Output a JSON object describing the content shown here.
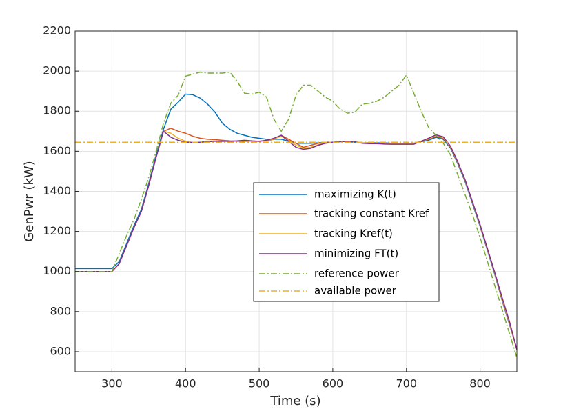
{
  "chart_data": {
    "type": "line",
    "xlabel": "Time (s)",
    "ylabel": "GenPwr (kW)",
    "xlim": [
      250,
      850
    ],
    "ylim": [
      500,
      2200
    ],
    "xticks": [
      300,
      400,
      500,
      600,
      700,
      800
    ],
    "yticks": [
      600,
      800,
      1000,
      1200,
      1400,
      1600,
      1800,
      2000,
      2200
    ],
    "grid": true,
    "legend": "center-right",
    "x": [
      250,
      260,
      270,
      280,
      290,
      300,
      310,
      320,
      330,
      340,
      350,
      360,
      370,
      380,
      390,
      400,
      410,
      420,
      430,
      440,
      450,
      460,
      470,
      480,
      490,
      500,
      510,
      520,
      530,
      540,
      550,
      560,
      570,
      580,
      590,
      600,
      610,
      620,
      630,
      640,
      650,
      660,
      670,
      680,
      690,
      700,
      710,
      720,
      730,
      740,
      750,
      760,
      770,
      780,
      790,
      800,
      810,
      820,
      830,
      840,
      850
    ],
    "series": [
      {
        "name": "maximizing K(t)",
        "color": "#0072bd",
        "linestyle": "solid",
        "values": [
          1015,
          1015,
          1015,
          1015,
          1015,
          1015,
          1050,
          1140,
          1230,
          1310,
          1440,
          1580,
          1710,
          1810,
          1845,
          1885,
          1882,
          1865,
          1835,
          1795,
          1740,
          1710,
          1690,
          1680,
          1670,
          1665,
          1660,
          1660,
          1660,
          1650,
          1640,
          1640,
          1640,
          1642,
          1645,
          1645,
          1648,
          1648,
          1645,
          1642,
          1642,
          1642,
          1642,
          1640,
          1640,
          1640,
          1640,
          1648,
          1655,
          1670,
          1660,
          1615,
          1535,
          1445,
          1335,
          1225,
          1105,
          985,
          855,
          735,
          615
        ]
      },
      {
        "name": "tracking constant Kref",
        "color": "#d95319",
        "linestyle": "solid",
        "values": [
          1000,
          1000,
          1000,
          1000,
          1000,
          1000,
          1040,
          1130,
          1220,
          1300,
          1430,
          1570,
          1700,
          1715,
          1700,
          1690,
          1675,
          1665,
          1660,
          1658,
          1655,
          1652,
          1650,
          1650,
          1650,
          1650,
          1652,
          1660,
          1680,
          1660,
          1640,
          1620,
          1630,
          1640,
          1642,
          1645,
          1648,
          1650,
          1648,
          1642,
          1640,
          1640,
          1640,
          1640,
          1640,
          1640,
          1640,
          1650,
          1660,
          1675,
          1665,
          1620,
          1540,
          1450,
          1340,
          1230,
          1110,
          990,
          860,
          740,
          610
        ]
      },
      {
        "name": "tracking Kref(t)",
        "color": "#edb120",
        "linestyle": "solid",
        "values": [
          1000,
          1000,
          1000,
          1000,
          1000,
          1000,
          1040,
          1130,
          1220,
          1300,
          1430,
          1570,
          1700,
          1690,
          1665,
          1650,
          1645,
          1645,
          1648,
          1650,
          1650,
          1650,
          1652,
          1652,
          1650,
          1650,
          1655,
          1662,
          1675,
          1655,
          1630,
          1615,
          1620,
          1632,
          1640,
          1645,
          1648,
          1650,
          1648,
          1642,
          1640,
          1640,
          1638,
          1638,
          1638,
          1638,
          1638,
          1650,
          1662,
          1678,
          1668,
          1622,
          1542,
          1452,
          1342,
          1232,
          1112,
          992,
          865,
          745,
          610
        ]
      },
      {
        "name": "minimizing FT(t)",
        "color": "#7e2f8e",
        "linestyle": "solid",
        "values": [
          1000,
          1000,
          1000,
          1000,
          1000,
          1000,
          1040,
          1130,
          1220,
          1300,
          1430,
          1570,
          1700,
          1670,
          1655,
          1645,
          1643,
          1645,
          1648,
          1650,
          1650,
          1650,
          1652,
          1655,
          1652,
          1650,
          1655,
          1665,
          1680,
          1650,
          1620,
          1610,
          1615,
          1630,
          1640,
          1645,
          1648,
          1650,
          1648,
          1640,
          1638,
          1638,
          1636,
          1635,
          1635,
          1635,
          1635,
          1650,
          1665,
          1682,
          1672,
          1625,
          1545,
          1455,
          1345,
          1235,
          1115,
          995,
          870,
          750,
          610
        ]
      },
      {
        "name": "reference power",
        "color": "#77ac30",
        "linestyle": "dashdot",
        "values": [
          1000,
          1000,
          1000,
          1000,
          1000,
          1000,
          1090,
          1180,
          1260,
          1360,
          1470,
          1600,
          1740,
          1840,
          1880,
          1975,
          1985,
          1995,
          1990,
          1990,
          1990,
          1995,
          1950,
          1890,
          1885,
          1895,
          1870,
          1760,
          1700,
          1760,
          1880,
          1930,
          1930,
          1900,
          1870,
          1850,
          1810,
          1790,
          1795,
          1835,
          1840,
          1850,
          1870,
          1900,
          1930,
          1980,
          1890,
          1800,
          1720,
          1680,
          1640,
          1580,
          1480,
          1380,
          1280,
          1170,
          1050,
          930,
          810,
          690,
          570
        ]
      },
      {
        "name": "available power",
        "color": "#edb120",
        "linestyle": "dashdot",
        "values": [
          1645,
          1645,
          1645,
          1645,
          1645,
          1645,
          1645,
          1645,
          1645,
          1645,
          1645,
          1645,
          1645,
          1645,
          1645,
          1645,
          1645,
          1645,
          1645,
          1645,
          1645,
          1645,
          1645,
          1645,
          1645,
          1645,
          1645,
          1645,
          1645,
          1645,
          1645,
          1645,
          1645,
          1645,
          1645,
          1645,
          1645,
          1645,
          1645,
          1645,
          1645,
          1645,
          1645,
          1645,
          1645,
          1645,
          1645,
          1645,
          1645,
          1645,
          1645,
          1645,
          1645,
          1645,
          1645,
          1645,
          1645,
          1645,
          1645,
          1645,
          1645
        ]
      }
    ]
  }
}
